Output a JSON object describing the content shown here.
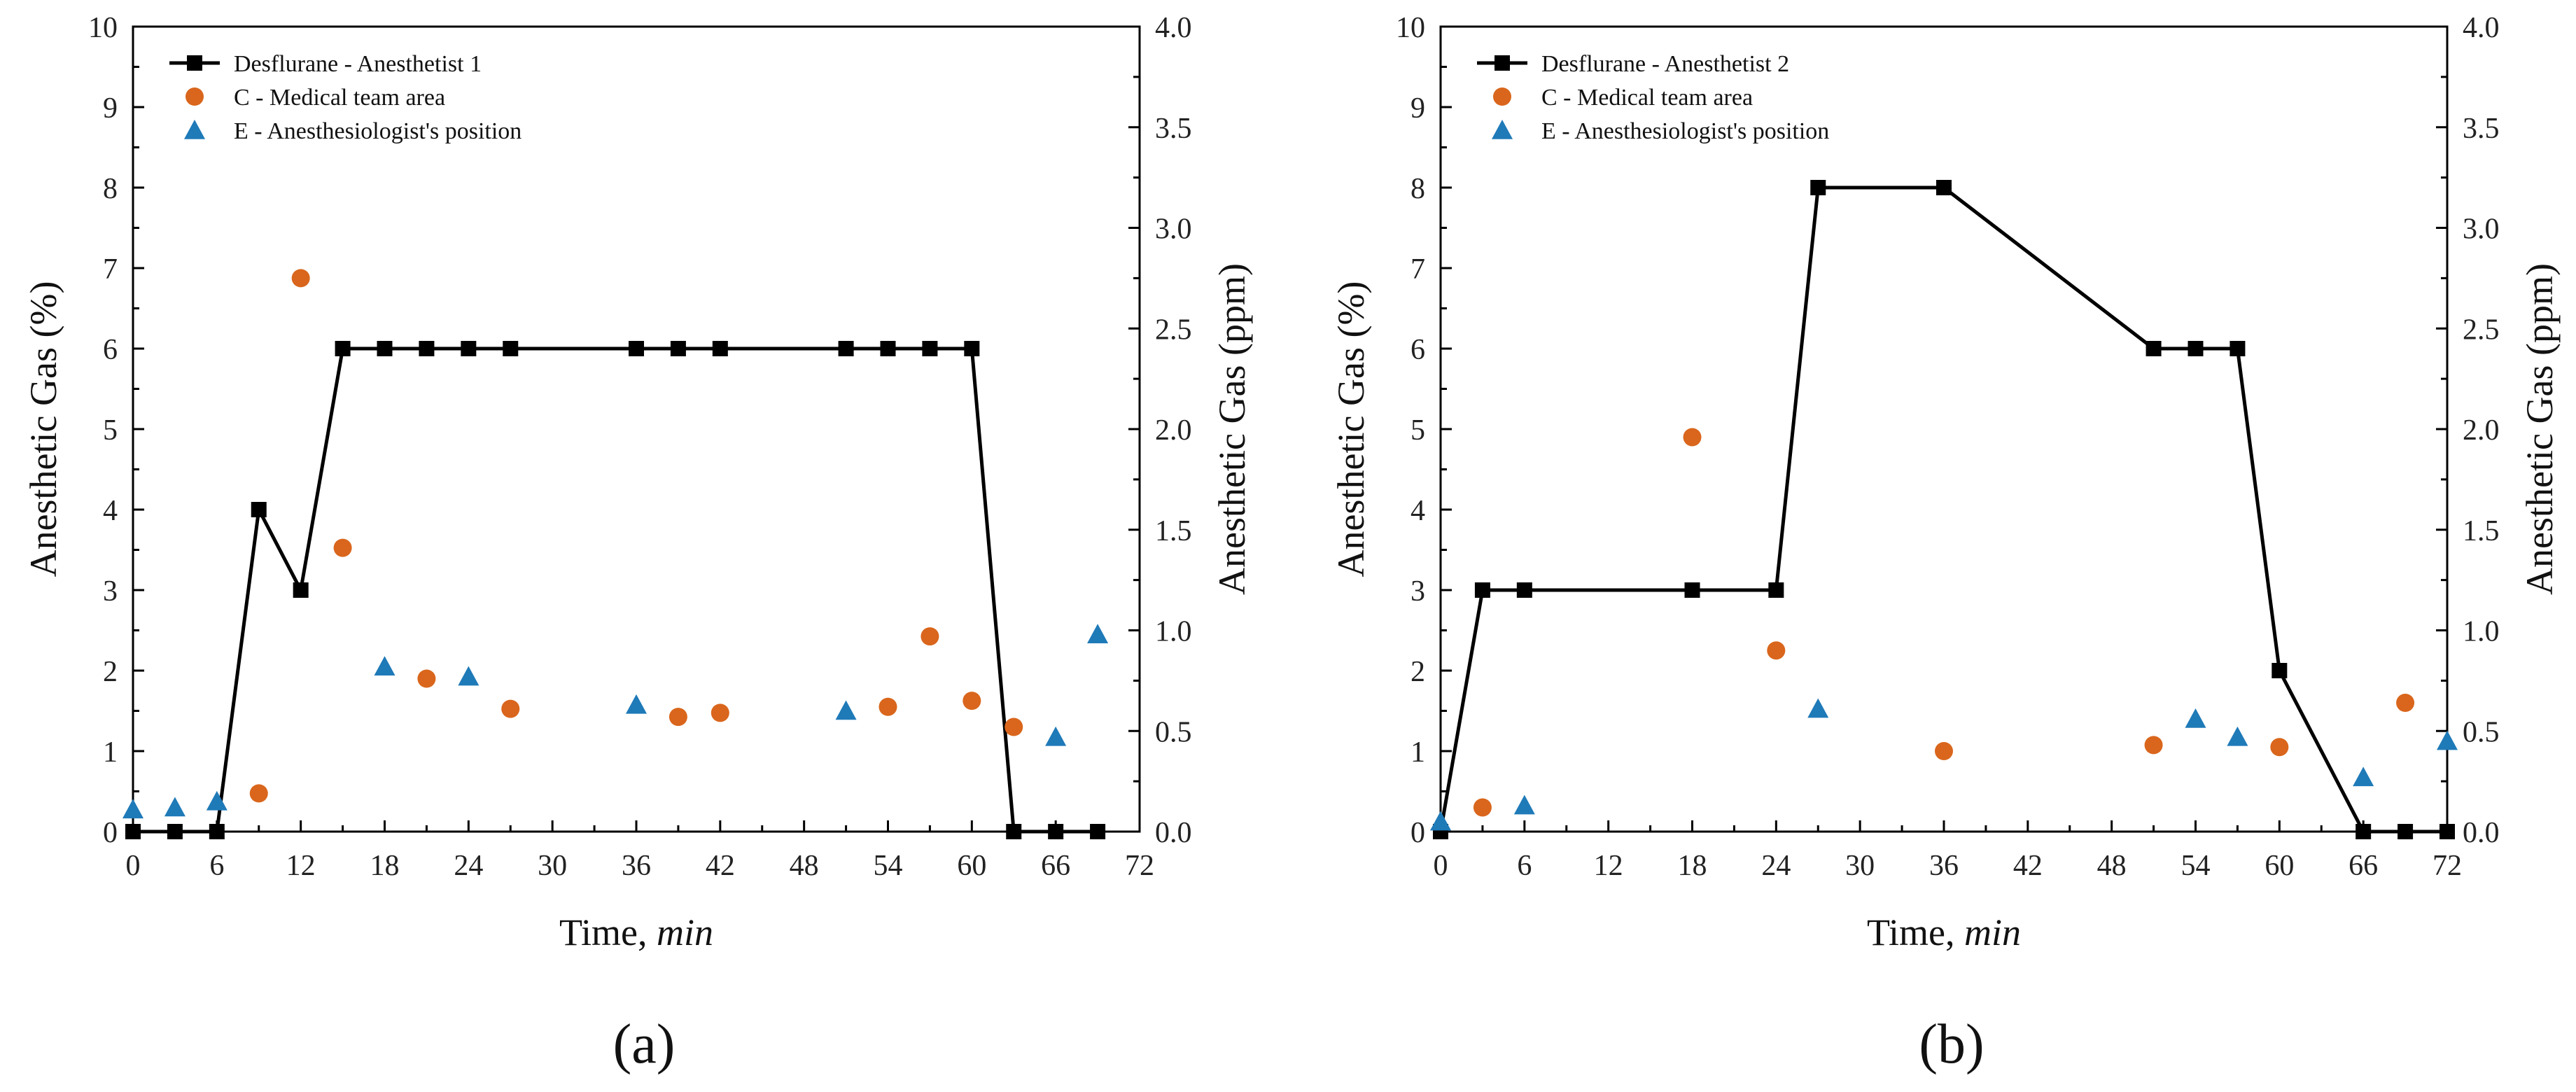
{
  "chart_data": [
    {
      "type": "scatter",
      "panel_label": "(a)",
      "xlabel_main": "Time, ",
      "xlabel_unit": "min",
      "ylabel_left": "Anesthetic Gas (%)",
      "ylabel_right": "Anesthetic Gas (ppm)",
      "xlim": [
        0,
        72
      ],
      "xticks": [
        0,
        6,
        12,
        18,
        24,
        30,
        36,
        42,
        48,
        54,
        60,
        66,
        72
      ],
      "ylim_left": [
        0,
        10
      ],
      "yticks_left": [
        0,
        1,
        2,
        3,
        4,
        5,
        6,
        7,
        8,
        9,
        10
      ],
      "ylim_right": [
        0,
        4
      ],
      "yticks_right": [
        "0.0",
        "0.5",
        "1.0",
        "1.5",
        "2.0",
        "2.5",
        "3.0",
        "3.5",
        "4.0"
      ],
      "legend_position": "top-left",
      "series": [
        {
          "name": "Desflurane - Anesthetist 1",
          "marker": "square",
          "axis": "left",
          "line": true,
          "color": "#000000",
          "x": [
            0,
            3,
            6,
            9,
            12,
            15,
            18,
            21,
            24,
            27,
            36,
            39,
            42,
            51,
            54,
            57,
            60,
            63,
            66,
            69
          ],
          "y": [
            0,
            0,
            0,
            4,
            3,
            6,
            6,
            6,
            6,
            6,
            6,
            6,
            6,
            6,
            6,
            6,
            6,
            0,
            0,
            0
          ]
        },
        {
          "name": "C - Medical team area",
          "marker": "circle",
          "axis": "right",
          "line": false,
          "color": "#d9661c",
          "x": [
            9,
            12,
            15,
            21,
            27,
            39,
            42,
            54,
            57,
            60,
            63
          ],
          "y": [
            0.19,
            2.75,
            1.41,
            0.76,
            0.61,
            0.57,
            0.59,
            0.62,
            0.97,
            0.65,
            0.52
          ]
        },
        {
          "name": "E - Anesthesiologist's position",
          "marker": "triangle",
          "axis": "right",
          "line": false,
          "color": "#1f7ab8",
          "x": [
            0,
            3,
            6,
            18,
            24,
            36,
            51,
            66,
            69
          ],
          "y": [
            0.11,
            0.12,
            0.15,
            0.82,
            0.77,
            0.63,
            0.6,
            0.47,
            0.98
          ]
        }
      ]
    },
    {
      "type": "scatter",
      "panel_label": "(b)",
      "xlabel_main": "Time, ",
      "xlabel_unit": "min",
      "ylabel_left": "Anesthetic Gas (%)",
      "ylabel_right": "Anesthetic Gas (ppm)",
      "xlim": [
        0,
        72
      ],
      "xticks": [
        0,
        6,
        12,
        18,
        24,
        30,
        36,
        42,
        48,
        54,
        60,
        66,
        72
      ],
      "ylim_left": [
        0,
        10
      ],
      "yticks_left": [
        0,
        1,
        2,
        3,
        4,
        5,
        6,
        7,
        8,
        9,
        10
      ],
      "ylim_right": [
        0,
        4
      ],
      "yticks_right": [
        "0.0",
        "0.5",
        "1.0",
        "1.5",
        "2.0",
        "2.5",
        "3.0",
        "3.5",
        "4.0"
      ],
      "legend_position": "top-left",
      "series": [
        {
          "name": "Desflurane - Anesthetist 2",
          "marker": "square",
          "axis": "left",
          "line": true,
          "color": "#000000",
          "x": [
            0,
            3,
            6,
            18,
            24,
            27,
            36,
            51,
            54,
            57,
            60,
            66,
            69,
            72
          ],
          "y": [
            0,
            3,
            3,
            3,
            3,
            8,
            8,
            6,
            6,
            6,
            2,
            0,
            0,
            0
          ]
        },
        {
          "name": "C - Medical team area",
          "marker": "circle",
          "axis": "right",
          "line": false,
          "color": "#d9661c",
          "x": [
            3,
            18,
            24,
            36,
            51,
            60,
            69
          ],
          "y": [
            0.12,
            1.96,
            0.9,
            0.4,
            0.43,
            0.42,
            0.64
          ]
        },
        {
          "name": "E - Anesthesiologist's position",
          "marker": "triangle",
          "axis": "right",
          "line": false,
          "color": "#1f7ab8",
          "x": [
            0,
            6,
            27,
            54,
            57,
            66,
            72
          ],
          "y": [
            0.05,
            0.13,
            0.61,
            0.56,
            0.47,
            0.27,
            0.45
          ]
        }
      ]
    }
  ]
}
